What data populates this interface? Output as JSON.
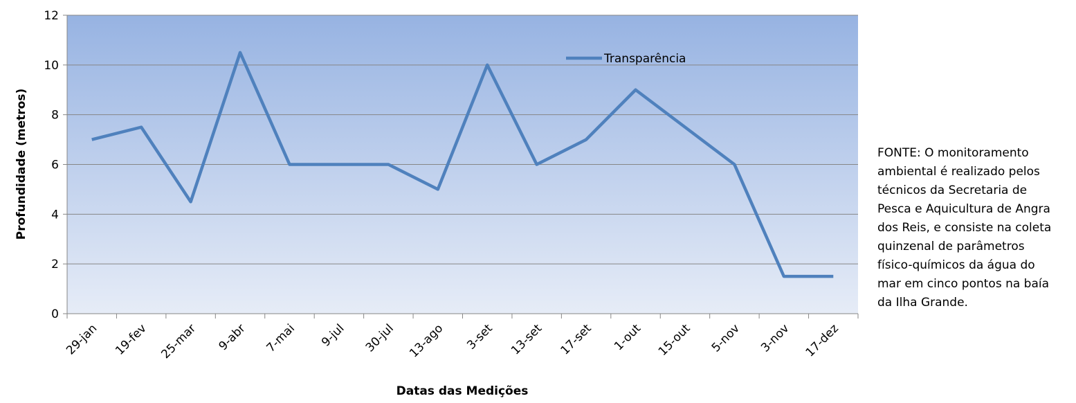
{
  "chart_data": {
    "type": "line",
    "categories": [
      "29-jan",
      "19-fev",
      "25-mar",
      "9-abr",
      "7-mai",
      "9-jul",
      "30-jul",
      "13-ago",
      "3-set",
      "13-set",
      "17-set",
      "1-out",
      "15-out",
      "5-nov",
      "3-nov",
      "17-dez"
    ],
    "series": [
      {
        "name": "Transparência",
        "color": "#4f81bd",
        "values": [
          7,
          7.5,
          4.5,
          10.5,
          6,
          6,
          6,
          5,
          10,
          6,
          7,
          9,
          7.5,
          6,
          1.5,
          1.5
        ]
      }
    ],
    "ylim": [
      0,
      12
    ],
    "yticks": [
      0,
      2,
      4,
      6,
      8,
      10,
      12
    ],
    "grid": true,
    "xlabel": "Datas das Medições",
    "ylabel": "Profundidade (metros)",
    "legend": "right",
    "annotation": [
      "FONTE: O monitoramento",
      "ambiental é realizado pelos",
      "técnicos da Secretaria de",
      "Pesca e Aquicultura de Angra",
      "dos Reis, e consiste na coleta",
      "quinzenal de parâmetros",
      "físico-químicos da água do",
      "mar em cinco pontos na baía",
      "da Ilha Grande."
    ]
  }
}
